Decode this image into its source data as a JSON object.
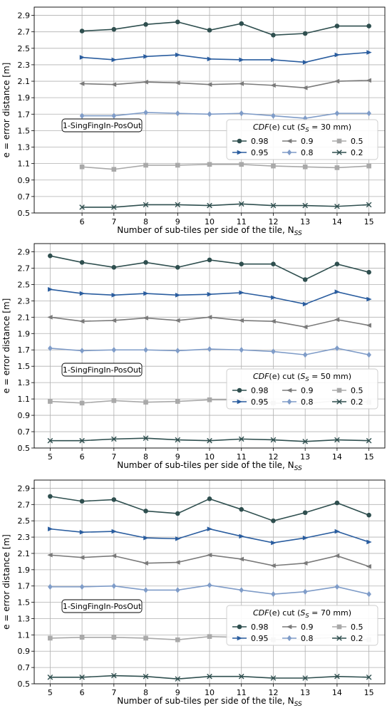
{
  "chart_data": [
    {
      "type": "line",
      "xlabel": "Number of sub-tiles per side of the tile, N_SS",
      "ylabel": "e = error distance [m]",
      "xlim": [
        4.5,
        15.5
      ],
      "ylim": [
        0.5,
        3.0
      ],
      "xticks": [
        6,
        7,
        8,
        9,
        10,
        11,
        12,
        13,
        14,
        15
      ],
      "yticks": [
        0.5,
        0.7,
        0.9,
        1.1,
        1.3,
        1.5,
        1.7,
        1.9,
        2.1,
        2.3,
        2.5,
        2.7,
        2.9
      ],
      "grid": true,
      "annotation": "1-SingFingIn-PosOut",
      "legend": {
        "title": "CDF(e) cut (S_S = 30 mm)",
        "placement": "center-right",
        "columns": 3
      },
      "x": [
        6,
        7,
        8,
        9,
        10,
        11,
        12,
        13,
        14,
        15
      ],
      "series": [
        {
          "name": "0.98",
          "color": "#2f4f4f",
          "marker": "circle",
          "values": [
            2.71,
            2.73,
            2.79,
            2.82,
            2.72,
            2.8,
            2.66,
            2.68,
            2.77,
            2.77
          ]
        },
        {
          "name": "0.95",
          "color": "#2a5d9f",
          "marker": "triangle-right",
          "values": [
            2.39,
            2.36,
            2.4,
            2.42,
            2.37,
            2.36,
            2.36,
            2.33,
            2.42,
            2.45
          ]
        },
        {
          "name": "0.9",
          "color": "#7a7a7a",
          "marker": "triangle-left",
          "values": [
            2.07,
            2.06,
            2.09,
            2.08,
            2.06,
            2.07,
            2.05,
            2.02,
            2.1,
            2.11
          ]
        },
        {
          "name": "0.8",
          "color": "#7f9cc8",
          "marker": "diamond",
          "values": [
            1.68,
            1.68,
            1.72,
            1.71,
            1.7,
            1.71,
            1.68,
            1.65,
            1.71,
            1.71
          ]
        },
        {
          "name": "0.5",
          "color": "#a9a9a9",
          "marker": "square",
          "values": [
            1.06,
            1.03,
            1.08,
            1.08,
            1.09,
            1.09,
            1.07,
            1.06,
            1.05,
            1.07
          ]
        },
        {
          "name": "0.2",
          "color": "#2f4f4f",
          "marker": "x",
          "values": [
            0.57,
            0.57,
            0.6,
            0.6,
            0.59,
            0.61,
            0.59,
            0.59,
            0.58,
            0.6
          ]
        }
      ]
    },
    {
      "type": "line",
      "xlabel": "Number of sub-tiles per side of the tile, N_SS",
      "ylabel": "e = error distance [m]",
      "xlim": [
        4.5,
        15.5
      ],
      "ylim": [
        0.5,
        3.0
      ],
      "xticks": [
        5,
        6,
        7,
        8,
        9,
        10,
        11,
        12,
        13,
        14,
        15
      ],
      "yticks": [
        0.5,
        0.7,
        0.9,
        1.1,
        1.3,
        1.5,
        1.7,
        1.9,
        2.1,
        2.3,
        2.5,
        2.7,
        2.9
      ],
      "grid": true,
      "annotation": "1-SingFingIn-PosOut",
      "legend": {
        "title": "CDF(e) cut (S_S = 50 mm)",
        "placement": "center-right",
        "columns": 3
      },
      "x": [
        5,
        6,
        7,
        8,
        9,
        10,
        11,
        12,
        13,
        14,
        15
      ],
      "series": [
        {
          "name": "0.98",
          "color": "#2f4f4f",
          "marker": "circle",
          "values": [
            2.85,
            2.77,
            2.71,
            2.77,
            2.71,
            2.8,
            2.75,
            2.75,
            2.56,
            2.75,
            2.65
          ]
        },
        {
          "name": "0.95",
          "color": "#2a5d9f",
          "marker": "triangle-right",
          "values": [
            2.44,
            2.39,
            2.37,
            2.39,
            2.37,
            2.38,
            2.4,
            2.34,
            2.26,
            2.41,
            2.32
          ]
        },
        {
          "name": "0.9",
          "color": "#7a7a7a",
          "marker": "triangle-left",
          "values": [
            2.1,
            2.05,
            2.06,
            2.09,
            2.06,
            2.1,
            2.06,
            2.05,
            1.98,
            2.07,
            2.0
          ]
        },
        {
          "name": "0.8",
          "color": "#7f9cc8",
          "marker": "diamond",
          "values": [
            1.72,
            1.69,
            1.7,
            1.7,
            1.69,
            1.71,
            1.7,
            1.68,
            1.64,
            1.72,
            1.64
          ]
        },
        {
          "name": "0.5",
          "color": "#a9a9a9",
          "marker": "square",
          "values": [
            1.07,
            1.05,
            1.08,
            1.06,
            1.07,
            1.09,
            1.09,
            1.05,
            1.04,
            1.08,
            1.06
          ]
        },
        {
          "name": "0.2",
          "color": "#2f4f4f",
          "marker": "x",
          "values": [
            0.59,
            0.59,
            0.61,
            0.62,
            0.6,
            0.59,
            0.61,
            0.6,
            0.58,
            0.6,
            0.59
          ]
        }
      ]
    },
    {
      "type": "line",
      "xlabel": "Number of sub-tiles per side of the tile, N_SS",
      "ylabel": "e = error distance [m]",
      "xlim": [
        4.5,
        15.5
      ],
      "ylim": [
        0.5,
        3.0
      ],
      "xticks": [
        5,
        6,
        7,
        8,
        9,
        10,
        11,
        12,
        13,
        14,
        15
      ],
      "yticks": [
        0.5,
        0.7,
        0.9,
        1.1,
        1.3,
        1.5,
        1.7,
        1.9,
        2.1,
        2.3,
        2.5,
        2.7,
        2.9
      ],
      "grid": true,
      "annotation": "1-SingFingIn-PosOut",
      "legend": {
        "title": "CDF(e) cut (S_S = 70 mm)",
        "placement": "center-right",
        "columns": 3
      },
      "x": [
        5,
        6,
        7,
        8,
        9,
        10,
        11,
        12,
        13,
        14,
        15
      ],
      "series": [
        {
          "name": "0.98",
          "color": "#2f4f4f",
          "marker": "circle",
          "values": [
            2.8,
            2.74,
            2.76,
            2.62,
            2.59,
            2.77,
            2.64,
            2.5,
            2.6,
            2.72,
            2.57
          ]
        },
        {
          "name": "0.95",
          "color": "#2a5d9f",
          "marker": "triangle-right",
          "values": [
            2.4,
            2.36,
            2.37,
            2.29,
            2.28,
            2.4,
            2.31,
            2.23,
            2.29,
            2.37,
            2.24
          ]
        },
        {
          "name": "0.9",
          "color": "#7a7a7a",
          "marker": "triangle-left",
          "values": [
            2.08,
            2.05,
            2.07,
            1.98,
            1.99,
            2.08,
            2.03,
            1.95,
            1.98,
            2.07,
            1.94
          ]
        },
        {
          "name": "0.8",
          "color": "#7f9cc8",
          "marker": "diamond",
          "values": [
            1.69,
            1.69,
            1.7,
            1.65,
            1.65,
            1.71,
            1.65,
            1.6,
            1.63,
            1.69,
            1.6
          ]
        },
        {
          "name": "0.5",
          "color": "#a9a9a9",
          "marker": "square",
          "values": [
            1.06,
            1.07,
            1.07,
            1.06,
            1.04,
            1.08,
            1.07,
            1.04,
            1.05,
            1.07,
            1.04
          ]
        },
        {
          "name": "0.2",
          "color": "#2f4f4f",
          "marker": "x",
          "values": [
            0.58,
            0.58,
            0.6,
            0.59,
            0.56,
            0.59,
            0.59,
            0.57,
            0.57,
            0.59,
            0.58
          ]
        }
      ]
    }
  ]
}
